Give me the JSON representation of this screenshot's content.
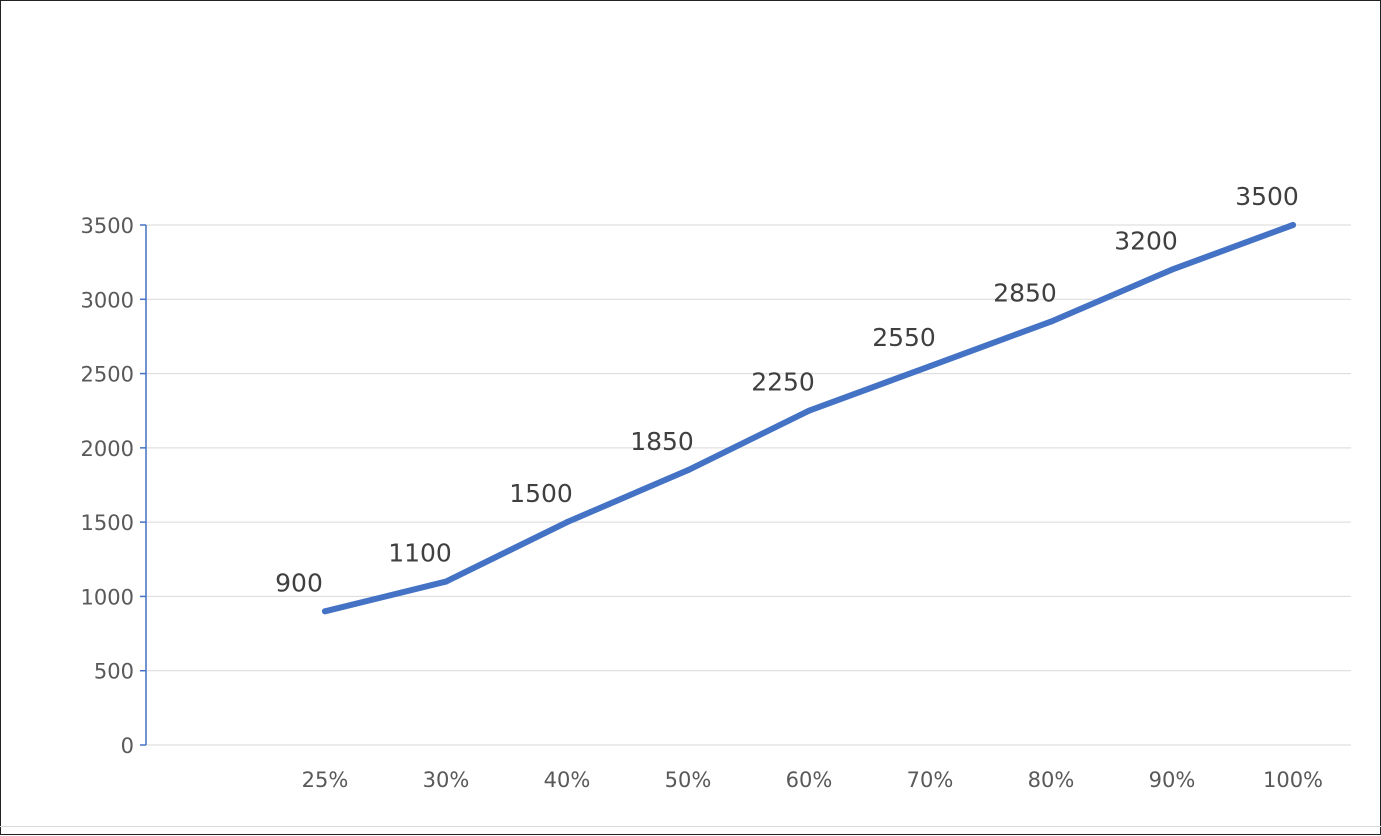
{
  "chart_data": {
    "type": "line",
    "categories": [
      "25%",
      "30%",
      "40%",
      "50%",
      "60%",
      "70%",
      "80%",
      "90%",
      "100%"
    ],
    "values": [
      900,
      1100,
      1500,
      1850,
      2250,
      2550,
      2850,
      3200,
      3500
    ],
    "data_labels": [
      "900",
      "1100",
      "1500",
      "1850",
      "2250",
      "2550",
      "2850",
      "3200",
      "3500"
    ],
    "y_ticks": [
      "0",
      "500",
      "1000",
      "1500",
      "2000",
      "2500",
      "3000",
      "3500"
    ],
    "y_tick_values": [
      0,
      500,
      1000,
      1500,
      2000,
      2500,
      3000,
      3500
    ],
    "ylim": [
      0,
      3500
    ],
    "grid": true,
    "legend": "none",
    "title": "",
    "xlabel": "",
    "ylabel": "",
    "colors": {
      "line": "#4472c4",
      "axis": "#4472c4",
      "grid": "#d9d9d9",
      "tick_text": "#595959",
      "data_label_text": "#404040"
    }
  }
}
